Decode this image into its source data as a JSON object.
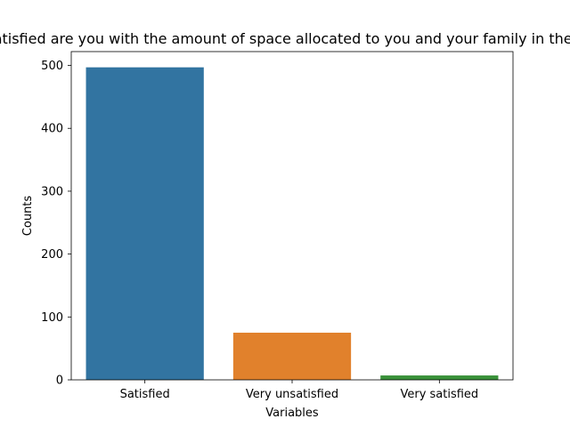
{
  "chart_data": {
    "type": "bar",
    "title": "How satisfied are you with the amount of space allocated to you and your family in the shelter?",
    "xlabel": "Variables",
    "ylabel": "Counts",
    "categories": [
      "Satisfied",
      "Very unsatisfied",
      "Very satisfied"
    ],
    "values": [
      497,
      75,
      7
    ],
    "ylim": [
      0,
      522
    ],
    "yticks": [
      0,
      100,
      200,
      300,
      400,
      500
    ],
    "colors": [
      "#3274a1",
      "#e1812c",
      "#3a923a"
    ],
    "grid": false,
    "legend": "none"
  }
}
